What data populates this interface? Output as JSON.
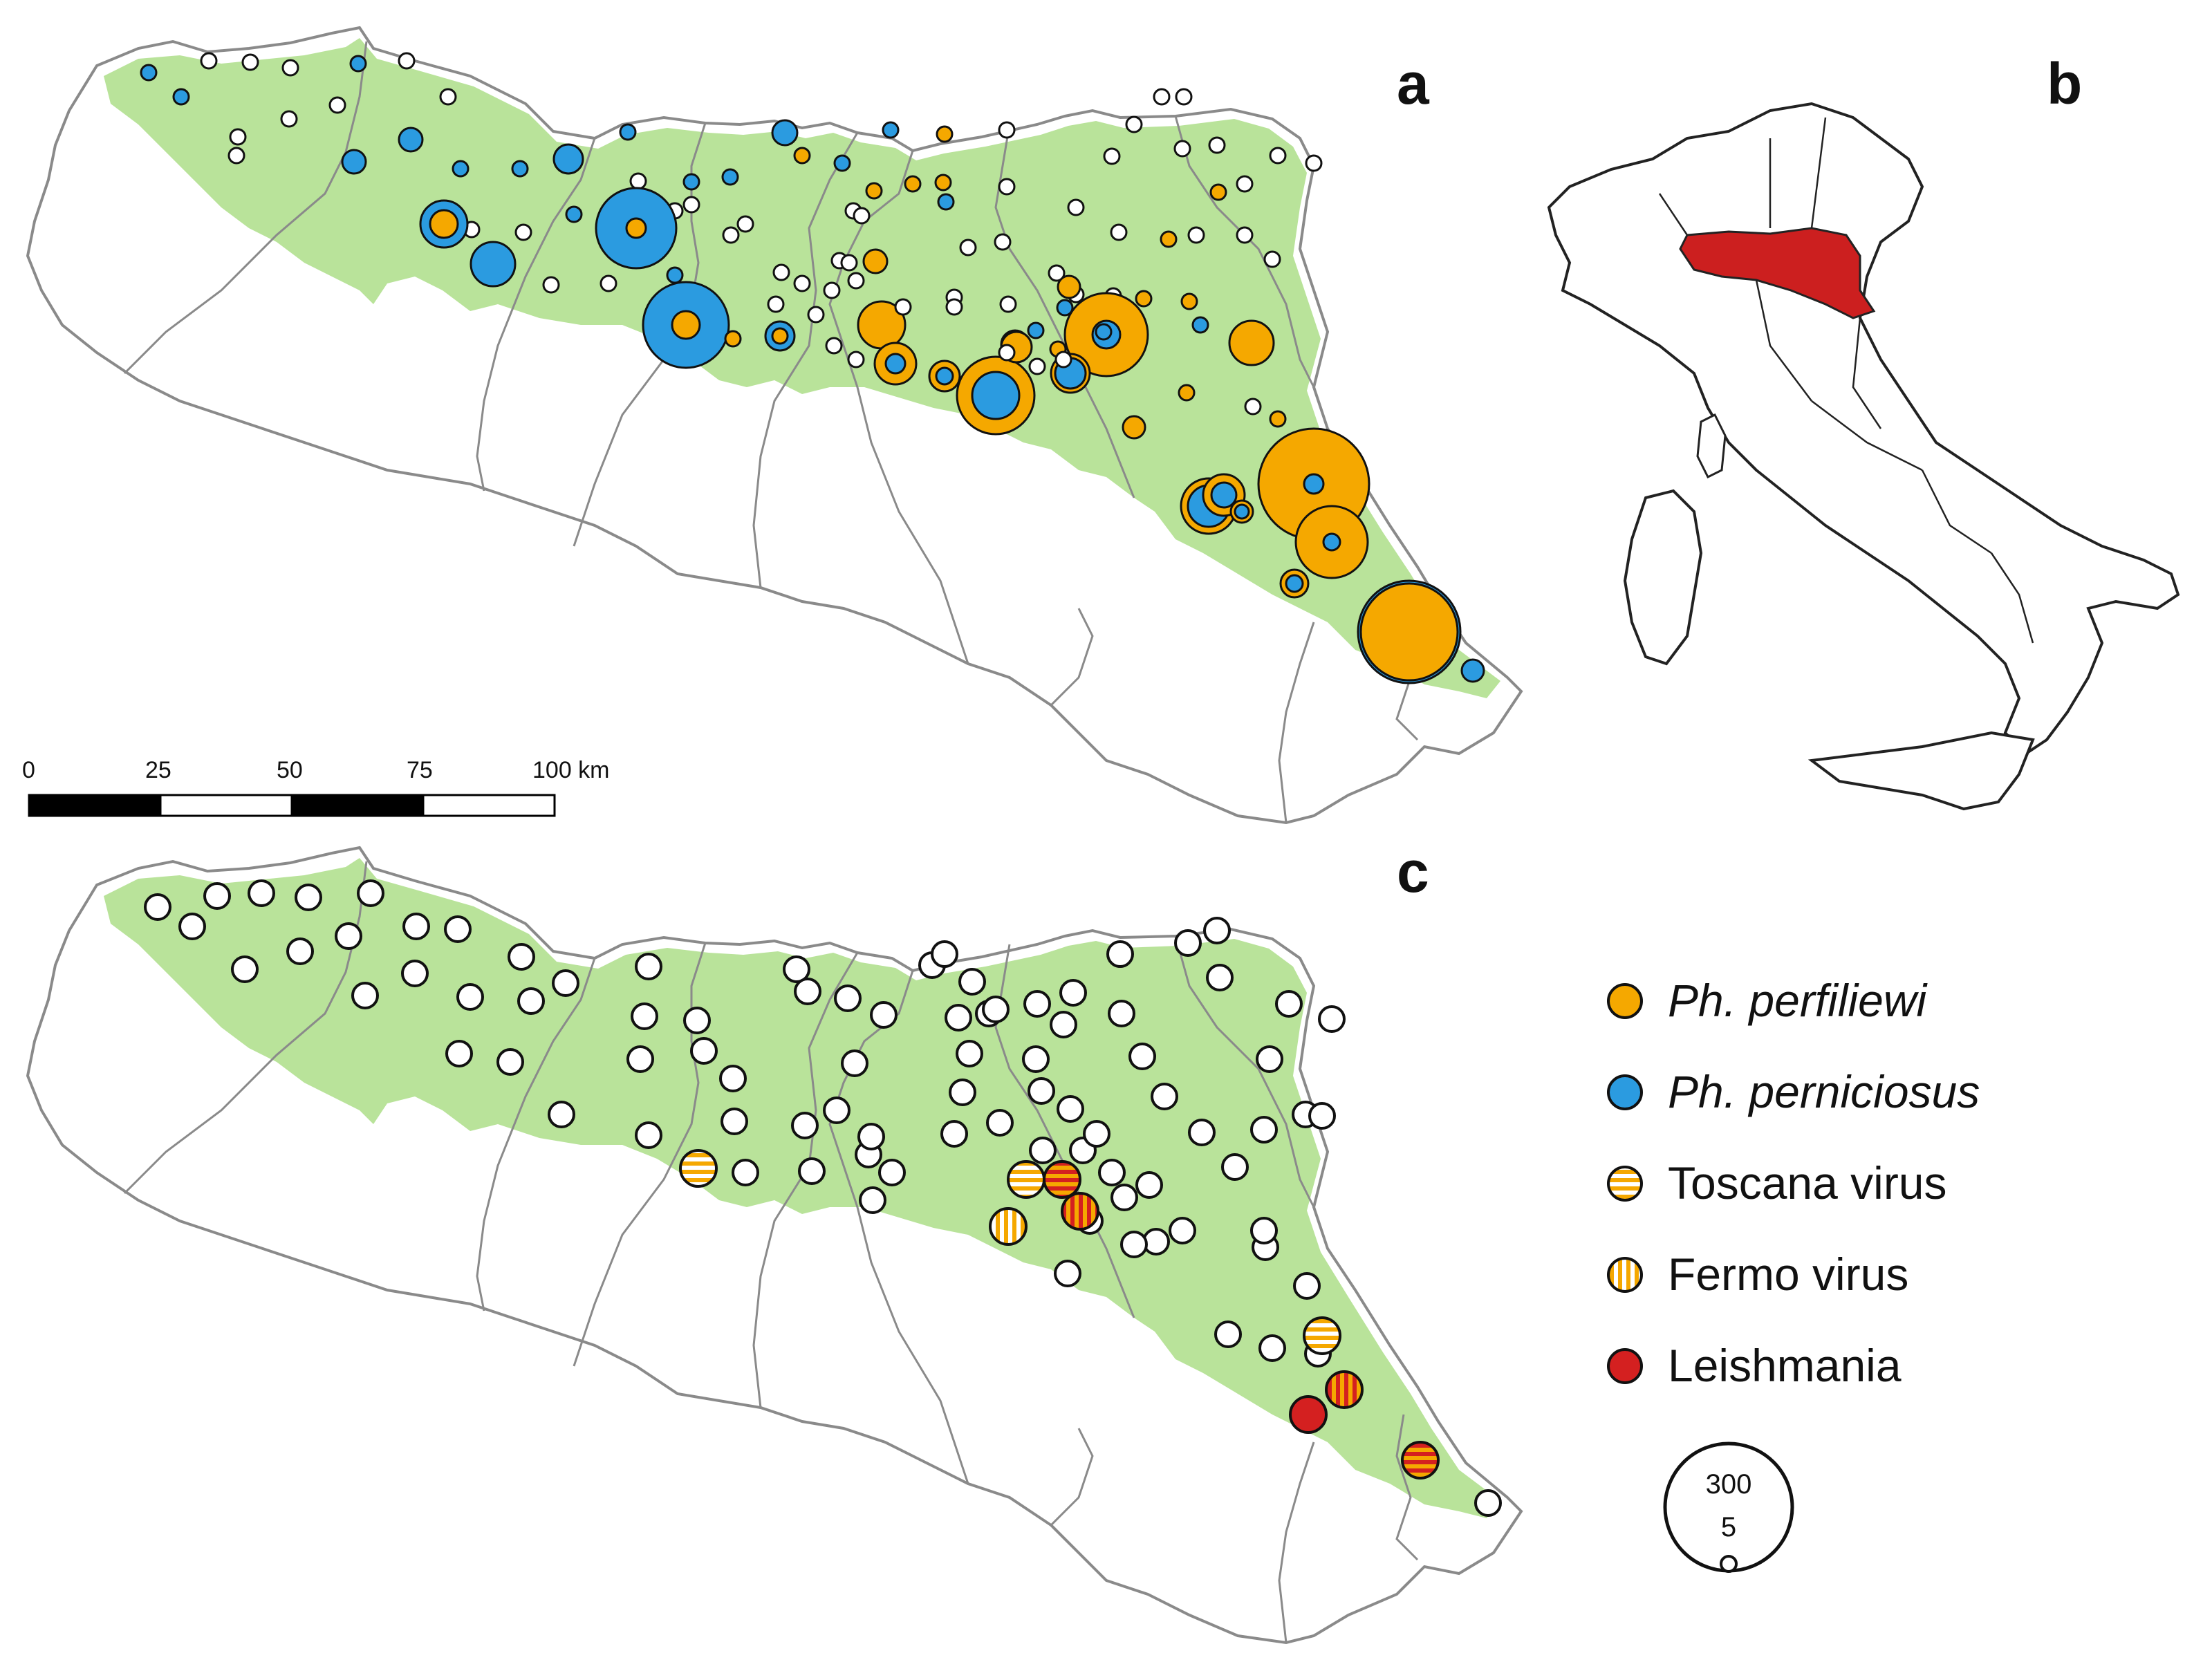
{
  "panels": {
    "a": "a",
    "b": "b",
    "c": "c"
  },
  "scalebar": {
    "ticks": [
      "0",
      "25",
      "50",
      "75",
      "100 km"
    ]
  },
  "legend": {
    "items": [
      {
        "key": "perfiliewi",
        "label": "Ph. perfiliewi",
        "italic": true,
        "color": "#f5a800",
        "pattern": "solid"
      },
      {
        "key": "perniciosus",
        "label": "Ph. perniciosus",
        "italic": true,
        "color": "#2b9be0",
        "pattern": "solid"
      },
      {
        "key": "toscana",
        "label": "Toscana virus",
        "italic": false,
        "color": "#f5a800",
        "pattern": "horizontal"
      },
      {
        "key": "fermo",
        "label": "Fermo virus",
        "italic": false,
        "color": "#f5a800",
        "pattern": "vertical"
      },
      {
        "key": "leishmania",
        "label": "Leishmania",
        "italic": false,
        "color": "#d42020",
        "pattern": "solid"
      }
    ],
    "size_key": {
      "large": "300",
      "small": "5"
    }
  },
  "colors": {
    "habitat": "#b9e39a",
    "boundary": "#8a8a8a",
    "orange": "#f5a800",
    "blue": "#2b9be0",
    "red": "#d42020",
    "italy_highlight": "#cc1f1f"
  }
}
